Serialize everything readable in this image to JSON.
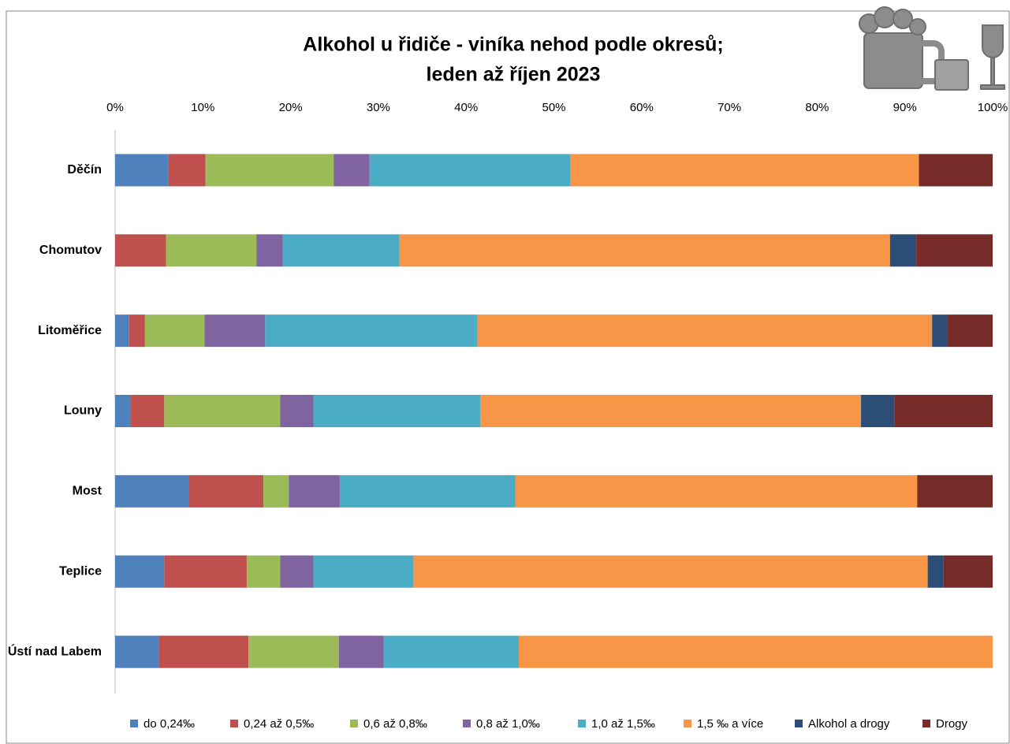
{
  "chart_data": {
    "type": "stacked-bar-horizontal",
    "title_lines": [
      "Alkohol u řidiče - viníka nehod podle okresů;",
      "leden až říjen 2023"
    ],
    "categories": [
      "Děčín",
      "Chomutov",
      "Litoměřice",
      "Louny",
      "Most",
      "Teplice",
      "Ústí nad Labem"
    ],
    "series": [
      {
        "name": "do 0,24‰",
        "color": "#4f81bd",
        "values": [
          6.1,
          0,
          1.6,
          1.8,
          8.4,
          5.6,
          5.0
        ]
      },
      {
        "name": "0,24 až 0,5‰",
        "color": "#c0504d",
        "values": [
          4.2,
          5.8,
          1.8,
          3.8,
          8.5,
          9.4,
          10.2
        ]
      },
      {
        "name": "0,6 až 0,8‰",
        "color": "#9bbb59",
        "values": [
          14.6,
          10.3,
          6.8,
          13.2,
          2.9,
          3.8,
          10.3
        ]
      },
      {
        "name": "0,8 až 1,0‰",
        "color": "#8064a2",
        "values": [
          4.1,
          3.0,
          6.9,
          3.8,
          5.8,
          3.8,
          5.1
        ]
      },
      {
        "name": "1,0 až 1,5‰",
        "color": "#4bacc6",
        "values": [
          22.9,
          13.3,
          24.2,
          19.0,
          20.0,
          11.4,
          15.4
        ]
      },
      {
        "name": "1,5 ‰ a více",
        "color": "#f79646",
        "values": [
          39.7,
          55.9,
          51.8,
          43.4,
          45.8,
          58.6,
          54.0
        ]
      },
      {
        "name": "Alkohol a drogy",
        "color": "#2c4d75",
        "values": [
          0,
          3.0,
          1.7,
          3.8,
          0,
          1.8,
          0
        ]
      },
      {
        "name": "Drogy",
        "color": "#772c2a",
        "values": [
          8.4,
          8.7,
          5.2,
          11.2,
          8.6,
          5.6,
          0
        ]
      }
    ],
    "xlim": [
      0,
      100
    ],
    "xticks": [
      {
        "value": 0,
        "label": "0%"
      },
      {
        "value": 10,
        "label": "10%"
      },
      {
        "value": 20,
        "label": "20%"
      },
      {
        "value": 30,
        "label": "30%"
      },
      {
        "value": 40,
        "label": "40%"
      },
      {
        "value": 50,
        "label": "50%"
      },
      {
        "value": 60,
        "label": "60%"
      },
      {
        "value": 70,
        "label": "70%"
      },
      {
        "value": 80,
        "label": "80%"
      },
      {
        "value": 90,
        "label": "90%"
      },
      {
        "value": 100,
        "label": "100%"
      }
    ],
    "legend": "bottom"
  }
}
